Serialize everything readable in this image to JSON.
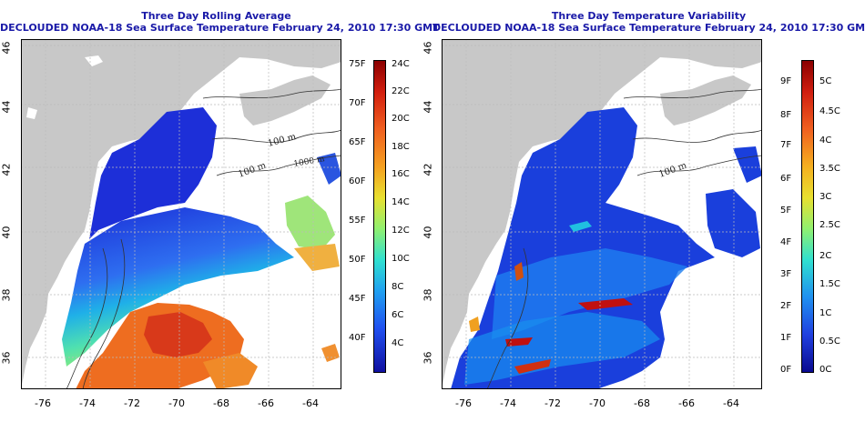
{
  "left_panel": {
    "title_line1": "Three Day Rolling Average",
    "title_line2": "DECLOUDED NOAA-18 Sea Surface Temperature February 24, 2010 17:30 GMT",
    "colorbar": {
      "fahrenheit": [
        "75F",
        "70F",
        "65F",
        "60F",
        "55F",
        "50F",
        "45F",
        "40F"
      ],
      "celsius": [
        "24C",
        "22C",
        "20C",
        "18C",
        "16C",
        "14C",
        "12C",
        "10C",
        "8C",
        "6C",
        "4C"
      ]
    }
  },
  "right_panel": {
    "title_line1": "Three Day Temperature Variability",
    "title_line2": "DECLOUDED NOAA-18 Sea Surface Temperature February 24, 2010 17:30 GMT",
    "colorbar": {
      "fahrenheit": [
        "9F",
        "8F",
        "7F",
        "6F",
        "5F",
        "4F",
        "3F",
        "2F",
        "1F",
        "0F"
      ],
      "celsius": [
        "5C",
        "4.5C",
        "4C",
        "3.5C",
        "3C",
        "2.5C",
        "2C",
        "1.5C",
        "1C",
        "0.5C",
        "0C"
      ]
    }
  },
  "axes": {
    "lon_ticks": [
      "-76",
      "-74",
      "-72",
      "-70",
      "-68",
      "-66",
      "-64"
    ],
    "lat_ticks": [
      "36",
      "38",
      "40",
      "42",
      "44",
      "46"
    ]
  },
  "contour_labels": [
    "100 m",
    "100 m",
    "1000 m",
    "100 m"
  ],
  "colors": {
    "land": "#c8c8c8",
    "title": "#1a1aa8"
  }
}
